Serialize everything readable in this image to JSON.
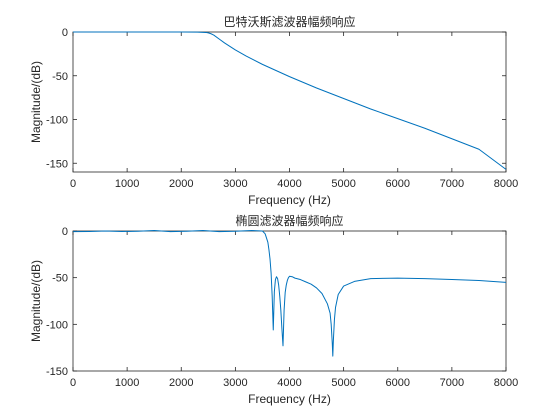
{
  "chart_data": [
    {
      "type": "line",
      "title": "巴特沃斯滤波器幅频响应",
      "xlabel": "Frequency (Hz)",
      "ylabel": "Magnitude/(dB)",
      "xlim": [
        0,
        8000
      ],
      "ylim": [
        -160,
        0
      ],
      "xticks": [
        "0",
        "1000",
        "2000",
        "3000",
        "4000",
        "5000",
        "6000",
        "7000",
        "8000"
      ],
      "yticks": [
        "0",
        "-50",
        "-100",
        "-150"
      ],
      "grid": false,
      "series": [
        {
          "color": "#0072BD",
          "x": [
            0,
            500,
            1000,
            1500,
            2000,
            2300,
            2450,
            2500,
            2550,
            2600,
            2700,
            2800,
            2900,
            3000,
            3200,
            3500,
            4000,
            4500,
            5000,
            5500,
            6000,
            6500,
            7000,
            7500,
            8000
          ],
          "y": [
            0,
            0,
            0,
            0,
            0,
            -0.1,
            -0.5,
            -1,
            -2,
            -3.5,
            -8,
            -12.5,
            -16.5,
            -20.5,
            -27.5,
            -37,
            -51,
            -64,
            -76,
            -88,
            -99,
            -110,
            -122,
            -134,
            -157
          ]
        }
      ]
    },
    {
      "type": "line",
      "title": "椭圆滤波器幅频响应",
      "xlabel": "Frequency (Hz)",
      "ylabel": "Magnitude/(dB)",
      "xlim": [
        0,
        8000
      ],
      "ylim": [
        -150,
        0
      ],
      "xticks": [
        "0",
        "1000",
        "2000",
        "3000",
        "4000",
        "5000",
        "6000",
        "7000",
        "8000"
      ],
      "yticks": [
        "0",
        "-50",
        "-100",
        "-150"
      ],
      "grid": false,
      "series": [
        {
          "color": "#0072BD",
          "x": [
            0,
            300,
            600,
            900,
            1200,
            1500,
            1800,
            2100,
            2400,
            2700,
            3000,
            3300,
            3500,
            3550,
            3600,
            3620,
            3640,
            3660,
            3680,
            3700,
            3720,
            3740,
            3760,
            3780,
            3800,
            3820,
            3840,
            3860,
            3880,
            3900,
            3920,
            3940,
            3960,
            3980,
            4000,
            4050,
            4100,
            4200,
            4300,
            4400,
            4500,
            4600,
            4700,
            4750,
            4770,
            4790,
            4800,
            4810,
            4830,
            4850,
            4900,
            5000,
            5200,
            5500,
            6000,
            6500,
            7000,
            7500,
            8000
          ],
          "y": [
            -0.7,
            -0.5,
            0,
            -0.6,
            -0.2,
            0.5,
            -0.7,
            -0.2,
            0.5,
            -0.7,
            -0.3,
            0.5,
            0,
            -3,
            -12,
            -20,
            -30,
            -45,
            -70,
            -106,
            -65,
            -52,
            -49,
            -51,
            -58,
            -70,
            -85,
            -105,
            -123,
            -85,
            -66,
            -58,
            -53,
            -50,
            -48.5,
            -49,
            -50.5,
            -52,
            -54.5,
            -57,
            -61,
            -67,
            -78,
            -88,
            -100,
            -120,
            -134,
            -118,
            -95,
            -82,
            -68,
            -59,
            -54,
            -51,
            -50.5,
            -51,
            -52,
            -53,
            -55
          ]
        }
      ]
    }
  ]
}
